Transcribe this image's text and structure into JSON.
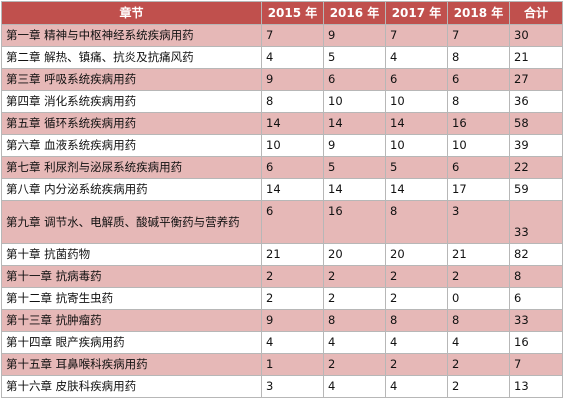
{
  "table": {
    "headers": [
      "章节",
      "2015 年",
      "2016 年",
      "2017 年",
      "2018 年",
      "合计"
    ],
    "rows": [
      [
        "第一章 精神与中枢神经系统疾病用药",
        "7",
        "9",
        "7",
        "7",
        "30"
      ],
      [
        "第二章 解热、镇痛、抗炎及抗痛风药",
        "4",
        "5",
        "4",
        "8",
        "21"
      ],
      [
        "第三章 呼吸系统疾病用药",
        "9",
        "6",
        "6",
        "6",
        "27"
      ],
      [
        "第四章 消化系统疾病用药",
        "8",
        "10",
        "10",
        "8",
        "36"
      ],
      [
        "第五章 循环系统疾病用药",
        "14",
        "14",
        "14",
        "16",
        "58"
      ],
      [
        "第六章 血液系统疾病用药",
        "10",
        "9",
        "10",
        "10",
        "39"
      ],
      [
        "第七章 利尿剂与泌尿系统疾病用药",
        "6",
        "5",
        "5",
        "6",
        "22"
      ],
      [
        "第八章 内分泌系统疾病用药",
        "14",
        "14",
        "14",
        "17",
        "59"
      ],
      [
        "第九章 调节水、电解质、酸碱平衡药与营养药",
        "6",
        "16",
        "8",
        "3",
        "33"
      ],
      [
        "第十章 抗菌药物",
        "21",
        "20",
        "20",
        "21",
        "82"
      ],
      [
        "第十一章 抗病毒药",
        "2",
        "2",
        "2",
        "2",
        "8"
      ],
      [
        "第十二章 抗寄生虫药",
        "2",
        "2",
        "2",
        "0",
        "6"
      ],
      [
        "第十三章 抗肿瘤药",
        "9",
        "8",
        "8",
        "8",
        "33"
      ],
      [
        "第十四章 眼产疾病用药",
        "4",
        "4",
        "4",
        "4",
        "16"
      ],
      [
        "第十五章 耳鼻喉科疾病用药",
        "1",
        "2",
        "2",
        "2",
        "7"
      ],
      [
        "第十六章 皮肤科疾病用药",
        "3",
        "4",
        "4",
        "2",
        "13"
      ]
    ]
  },
  "colors": {
    "header_bg": "#c0504d",
    "header_text": "#ffffff",
    "band_odd": "#e6b8b7",
    "band_even": "#ffffff",
    "border": "#b7b7b7"
  }
}
